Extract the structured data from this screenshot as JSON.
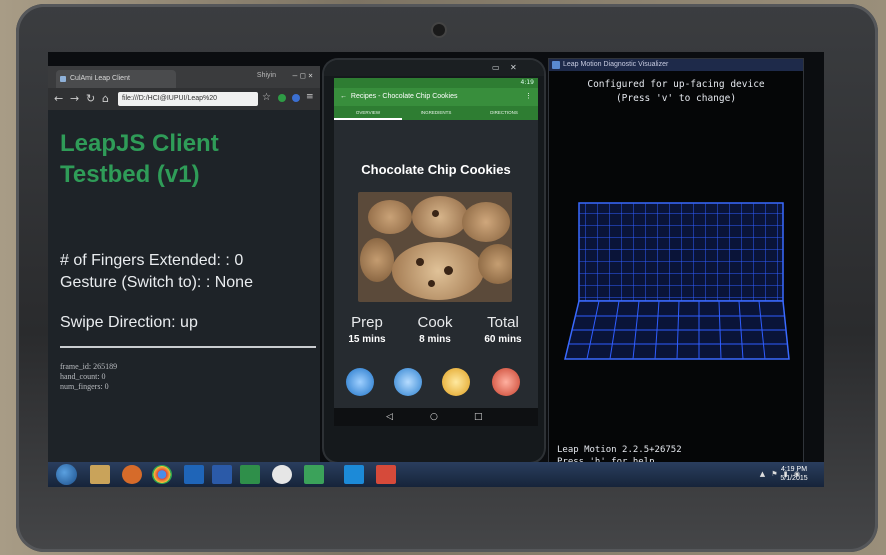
{
  "browser": {
    "tab_title": "CulAmi Leap Client",
    "user": "Shiyin",
    "url": "file:///D:/HCI@IUPUI/Leap%20",
    "page": {
      "title_line1": "LeapJS Client",
      "title_line2": "Testbed (v1)",
      "fingers_extended": "# of Fingers Extended: : 0",
      "gesture": "Gesture (Switch to): : None",
      "swipe_direction": "Swipe Direction: up",
      "frame_id": "frame_id: 265189",
      "hand_count": "hand_count: 0",
      "num_fingers": "num_fingers: 0"
    }
  },
  "phone": {
    "status_time": "4:19",
    "app_title": "Recipes - Chocolate Chip Cookies",
    "tabs": [
      "OVERVIEW",
      "INGREDIENTS",
      "DIRECTIONS"
    ],
    "recipe_title": "Chocolate Chip Cookies",
    "stats": [
      {
        "label": "Prep",
        "value": "15 mins"
      },
      {
        "label": "Cook",
        "value": "8 mins"
      },
      {
        "label": "Total",
        "value": "60 mins"
      }
    ],
    "nav": [
      "◁",
      "○",
      "□"
    ],
    "gesture_icons": [
      "swipe-icon",
      "grab-icon",
      "timer-icon",
      "stop-icon"
    ]
  },
  "diagnostic": {
    "window_title": "Leap Motion Diagnostic Visualizer",
    "config_line1": "Configured for up-facing device",
    "config_line2": "(Press 'v' to change)",
    "version": "Leap Motion 2.2.5+26752",
    "help": "Press 'h' for help"
  },
  "taskbar": {
    "time": "4:19 PM",
    "date": "5/1/2015"
  },
  "colors": {
    "title_green": "#2f9c58",
    "app_green": "#388e3c",
    "grid_blue": "#2f5dff"
  }
}
